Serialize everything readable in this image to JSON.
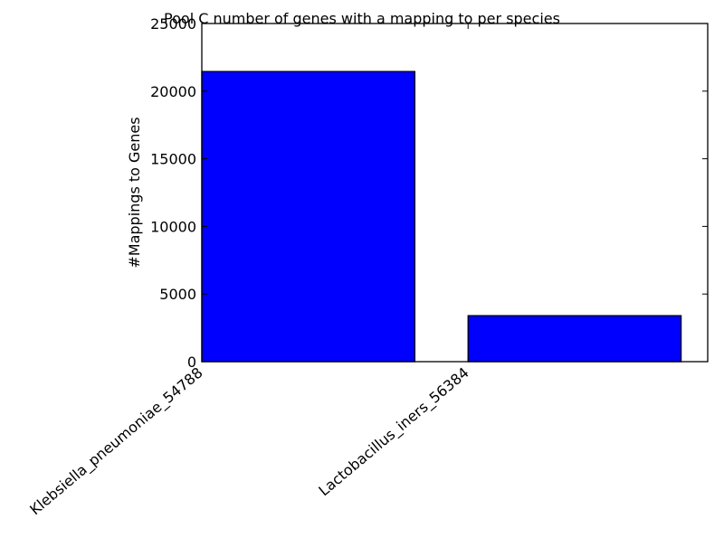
{
  "chart_data": {
    "type": "bar",
    "title": "Pool C number of genes with a mapping to per species",
    "xlabel": "",
    "ylabel": "#Mappings to Genes",
    "categories": [
      "Klebsiella_pneumoniae_54788",
      "Lactobacillus_iners_56384"
    ],
    "values": [
      21450,
      3400
    ],
    "ylim": [
      0,
      25000
    ],
    "yticks": [
      0,
      5000,
      10000,
      15000,
      20000,
      25000
    ],
    "ytick_labels": [
      "0",
      "5000",
      "10000",
      "15000",
      "20000",
      "25000"
    ],
    "bar_color": "#0000ff",
    "grid": false,
    "legend": "none"
  }
}
